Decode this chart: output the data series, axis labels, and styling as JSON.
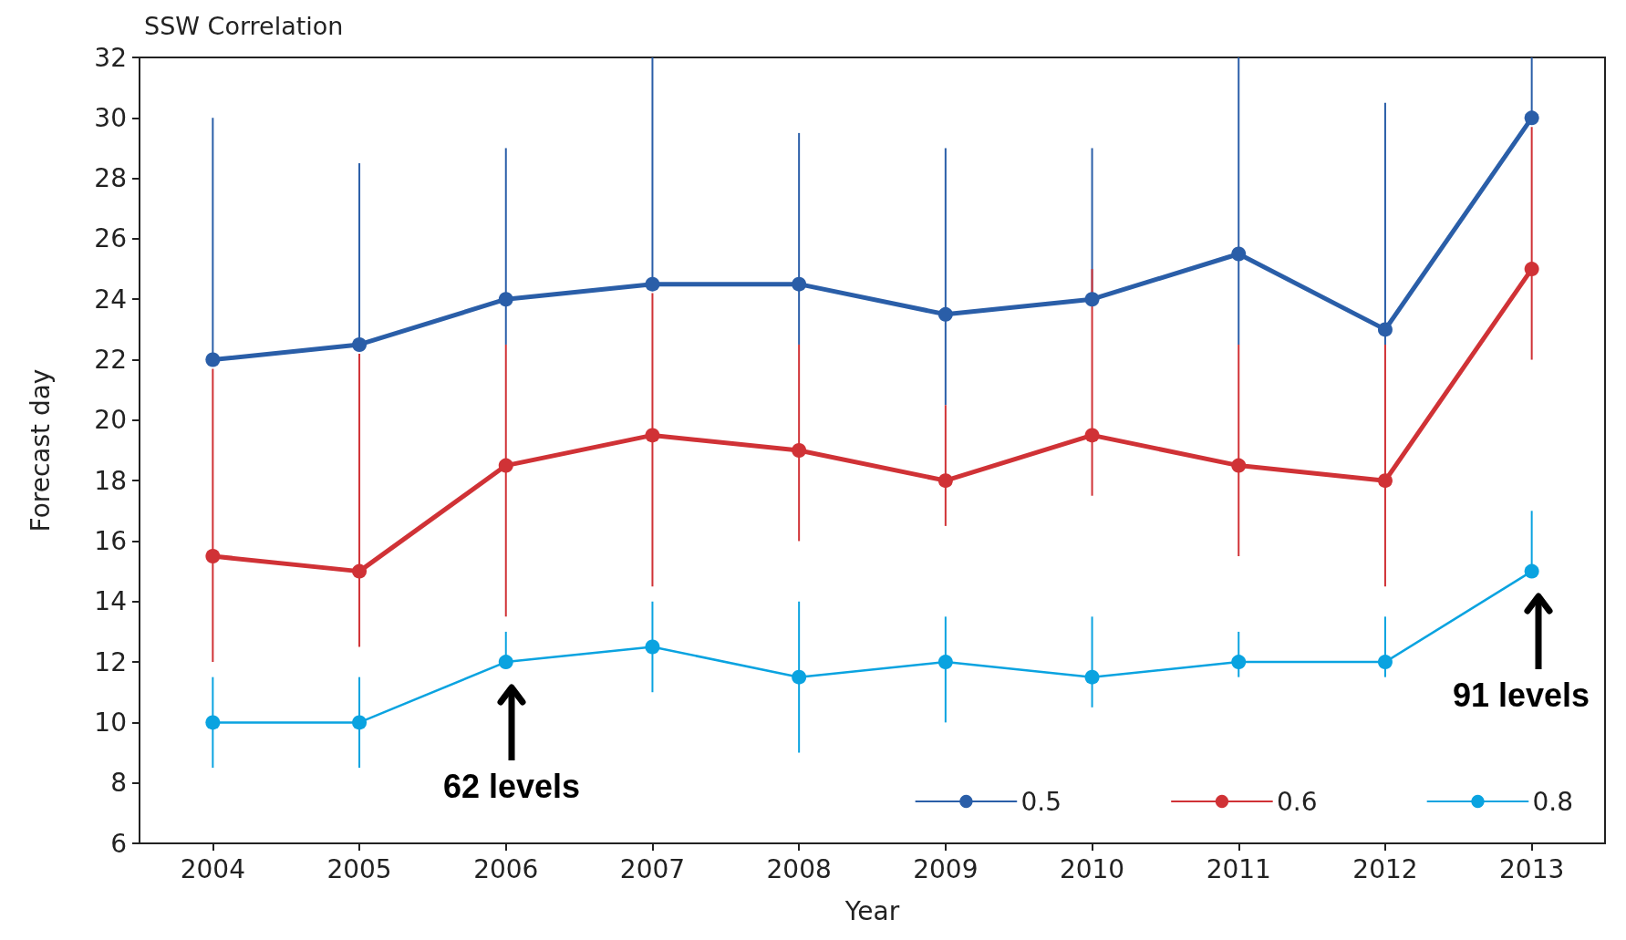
{
  "chart_data": {
    "type": "line",
    "title": "SSW Correlation",
    "xlabel": "Year",
    "ylabel": "Forecast day",
    "categories": [
      "2004",
      "2005",
      "2006",
      "2007",
      "2008",
      "2009",
      "2010",
      "2011",
      "2012",
      "2013"
    ],
    "series": [
      {
        "name": "0.5",
        "color": "#2a5ea8",
        "values": [
          22,
          22.5,
          24,
          24.5,
          24.5,
          23.5,
          24,
          25.5,
          23,
          30
        ],
        "errors": [
          [
            22,
            30
          ],
          [
            22.5,
            28.5
          ],
          [
            22.5,
            29
          ],
          [
            24.5,
            32
          ],
          [
            22.5,
            29.5
          ],
          [
            20.5,
            29
          ],
          [
            24,
            29
          ],
          [
            22.5,
            32
          ],
          [
            22.5,
            30.5
          ],
          [
            30,
            32
          ]
        ]
      },
      {
        "name": "0.6",
        "color": "#d03236",
        "values": [
          15.5,
          15,
          18.5,
          19.5,
          19,
          18,
          19.5,
          18.5,
          18,
          25
        ],
        "errors": [
          [
            12,
            21.7
          ],
          [
            12.5,
            22.2
          ],
          [
            13.5,
            22.5
          ],
          [
            14.5,
            24.2
          ],
          [
            16,
            22.5
          ],
          [
            16.5,
            20.5
          ],
          [
            17.5,
            25
          ],
          [
            15.5,
            22.5
          ],
          [
            14.5,
            22.5
          ],
          [
            22,
            29.7
          ]
        ]
      },
      {
        "name": "0.8",
        "color": "#0aa3e0",
        "values": [
          10,
          10,
          12,
          12.5,
          11.5,
          12,
          11.5,
          12,
          12,
          15
        ],
        "errors": [
          [
            8.5,
            11.5
          ],
          [
            8.5,
            11.5
          ],
          [
            12,
            13
          ],
          [
            11,
            14
          ],
          [
            9,
            14
          ],
          [
            10,
            13.5
          ],
          [
            10.5,
            13.5
          ],
          [
            11.5,
            13
          ],
          [
            11.5,
            13.5
          ],
          [
            15,
            17
          ]
        ]
      }
    ],
    "ylim": [
      6,
      32
    ],
    "yticks": [
      6,
      8,
      10,
      12,
      14,
      16,
      18,
      20,
      22,
      24,
      26,
      28,
      30,
      32
    ],
    "grid": false,
    "legend": "bottom right",
    "marker": "circle",
    "line_style": "solid",
    "annotations": [
      "62 levels",
      "91 levels"
    ]
  }
}
